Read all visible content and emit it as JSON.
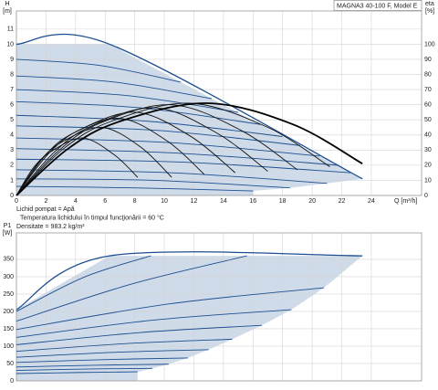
{
  "chart_data": [
    {
      "type": "line",
      "title": "MAGNA3 40-100 F, Model E",
      "y_label": [
        "H",
        "[m]"
      ],
      "y2_label": [
        "eta",
        "[%]"
      ],
      "x_label": "Q [m³/h]",
      "annotations": [
        "Lichid pompat = Apă",
        "Temperatura lichidului în timpul funcţionării = 60 °C",
        "Densitate = 983.2  kg/m³"
      ],
      "xlim": [
        0,
        27.4
      ],
      "ylim": [
        0,
        12.2
      ],
      "y2lim": [
        0,
        122
      ],
      "xticks": [
        0,
        2,
        4,
        6,
        8,
        10,
        12,
        14,
        16,
        18,
        20,
        22,
        24
      ],
      "yticks": [
        0,
        1,
        2,
        3,
        4,
        5,
        6,
        7,
        8,
        9,
        10,
        11
      ],
      "y2ticks": [
        0,
        10,
        20,
        30,
        40,
        50,
        60,
        70,
        80,
        90,
        100
      ],
      "grid": true,
      "fill": "#cfdbe8",
      "series": [
        {
          "color": "#1d4f91",
          "x": [
            0,
            6.3,
            23.4
          ],
          "values": [
            10,
            10,
            1.1
          ]
        },
        {
          "color": "#1d4f91",
          "x": [
            0,
            5.6,
            11.1
          ],
          "values": [
            9.0,
            8.6,
            7.5
          ]
        },
        {
          "color": "#1d4f91",
          "x": [
            0,
            6.6,
            13.2
          ],
          "values": [
            7.9,
            7.5,
            6.4
          ]
        },
        {
          "color": "#1d4f91",
          "x": [
            0,
            7.5,
            15.0
          ],
          "values": [
            7.0,
            6.6,
            5.5
          ]
        },
        {
          "color": "#1d4f91",
          "x": [
            0,
            8.3,
            16.5
          ],
          "values": [
            6.2,
            5.8,
            4.7
          ]
        },
        {
          "color": "#1d4f91",
          "x": [
            0,
            9.0,
            18.0
          ],
          "values": [
            5.3,
            4.9,
            3.9
          ]
        },
        {
          "color": "#1d4f91",
          "x": [
            0,
            9.6,
            19.2
          ],
          "values": [
            4.6,
            4.3,
            3.3
          ]
        },
        {
          "color": "#1d4f91",
          "x": [
            0,
            10.3,
            20.5
          ],
          "values": [
            3.8,
            3.5,
            2.6
          ]
        },
        {
          "color": "#1d4f91",
          "x": [
            0,
            10.9,
            21.7
          ],
          "values": [
            3.1,
            2.8,
            2.0
          ]
        },
        {
          "color": "#1d4f91",
          "x": [
            0,
            11.3,
            22.6
          ],
          "values": [
            2.4,
            2.2,
            1.5
          ]
        },
        {
          "color": "#1d4f91",
          "x": [
            0,
            10.5,
            21.0
          ],
          "values": [
            1.7,
            1.5,
            0.8
          ]
        },
        {
          "color": "#1d4f91",
          "x": [
            0,
            9.3,
            18.5
          ],
          "values": [
            1.1,
            1.0,
            0.5
          ]
        },
        {
          "color": "#1d4f91",
          "x": [
            0,
            8.0,
            16.0
          ],
          "values": [
            0.6,
            0.5,
            0.3
          ]
        },
        {
          "color": "#111111",
          "axis": "y2",
          "x": [
            0,
            1.2,
            2.5,
            4.5,
            6.6,
            8.2
          ],
          "values": [
            0,
            19,
            30,
            38,
            27,
            12
          ]
        },
        {
          "color": "#111111",
          "axis": "y2",
          "x": [
            0,
            1.6,
            3.2,
            5.8,
            8.4,
            10.5
          ],
          "values": [
            0,
            23,
            36,
            45,
            32,
            12
          ]
        },
        {
          "color": "#111111",
          "axis": "y2",
          "x": [
            0,
            1.9,
            3.8,
            7.0,
            10.2,
            12.7
          ],
          "values": [
            0,
            26,
            41,
            51,
            36,
            14
          ]
        },
        {
          "color": "#111111",
          "axis": "y2",
          "x": [
            0,
            2.2,
            4.4,
            8.1,
            11.8,
            14.8
          ],
          "values": [
            0,
            28,
            44,
            55,
            39,
            15
          ]
        },
        {
          "color": "#111111",
          "axis": "y2",
          "x": [
            0,
            2.6,
            5.1,
            9.4,
            13.6,
            17.0
          ],
          "values": [
            0,
            29,
            46,
            58,
            41,
            16
          ]
        },
        {
          "color": "#111111",
          "axis": "y2",
          "x": [
            0,
            2.9,
            5.7,
            10.5,
            15.2,
            19.0
          ],
          "values": [
            0,
            30,
            48,
            60,
            43,
            17
          ]
        },
        {
          "color": "#111111",
          "axis": "y2",
          "x": [
            0,
            3.2,
            6.4,
            11.7,
            17.0,
            21.2
          ],
          "values": [
            0,
            31,
            49,
            61,
            45,
            19
          ]
        },
        {
          "color": "#000000",
          "axis": "y2",
          "bold": true,
          "x": [
            0,
            3.5,
            7.0,
            12.9,
            18.7,
            23.4
          ],
          "values": [
            0,
            31,
            49,
            61,
            47,
            21
          ]
        }
      ]
    },
    {
      "type": "line",
      "y_label": [
        "P1",
        "[W]"
      ],
      "xlim": [
        0,
        27.4
      ],
      "ylim": [
        0,
        426
      ],
      "xticks": [
        0,
        2,
        4,
        6,
        8,
        10,
        12,
        14,
        16,
        18,
        20,
        22,
        24
      ],
      "yticks": [
        0,
        50,
        100,
        150,
        200,
        250,
        300,
        350
      ],
      "grid": true,
      "fill": "#cfdbe8",
      "series": [
        {
          "color": "#1d4f91",
          "x": [
            0,
            6.3,
            23.4
          ],
          "values": [
            205,
            360,
            360
          ]
        },
        {
          "color": "#1d4f91",
          "x": [
            0,
            4.6,
            9.1
          ],
          "values": [
            200,
            299,
            360
          ]
        },
        {
          "color": "#1d4f91",
          "x": [
            0,
            7.8,
            15.6
          ],
          "values": [
            172,
            279,
            360
          ]
        },
        {
          "color": "#1d4f91",
          "x": [
            0,
            10.4,
            20.8
          ],
          "values": [
            148,
            222,
            268
          ]
        },
        {
          "color": "#1d4f91",
          "x": [
            0,
            9.3,
            18.6
          ],
          "values": [
            125,
            175,
            205
          ]
        },
        {
          "color": "#1d4f91",
          "x": [
            0,
            8.3,
            16.6
          ],
          "values": [
            104,
            139,
            160
          ]
        },
        {
          "color": "#1d4f91",
          "x": [
            0,
            7.3,
            14.6
          ],
          "values": [
            85,
            107,
            120
          ]
        },
        {
          "color": "#1d4f91",
          "x": [
            0,
            6.5,
            13.0
          ],
          "values": [
            68,
            82,
            90
          ]
        },
        {
          "color": "#1d4f91",
          "x": [
            0,
            5.8,
            11.6
          ],
          "values": [
            53,
            61,
            66
          ]
        },
        {
          "color": "#1d4f91",
          "x": [
            0,
            5.2,
            10.3
          ],
          "values": [
            40,
            45,
            48
          ]
        },
        {
          "color": "#1d4f91",
          "x": [
            0,
            4.6,
            9.2
          ],
          "values": [
            30,
            34,
            36
          ]
        },
        {
          "color": "#1d4f91",
          "x": [
            0,
            4.1,
            8.2
          ],
          "values": [
            21,
            24,
            26
          ]
        }
      ]
    }
  ]
}
